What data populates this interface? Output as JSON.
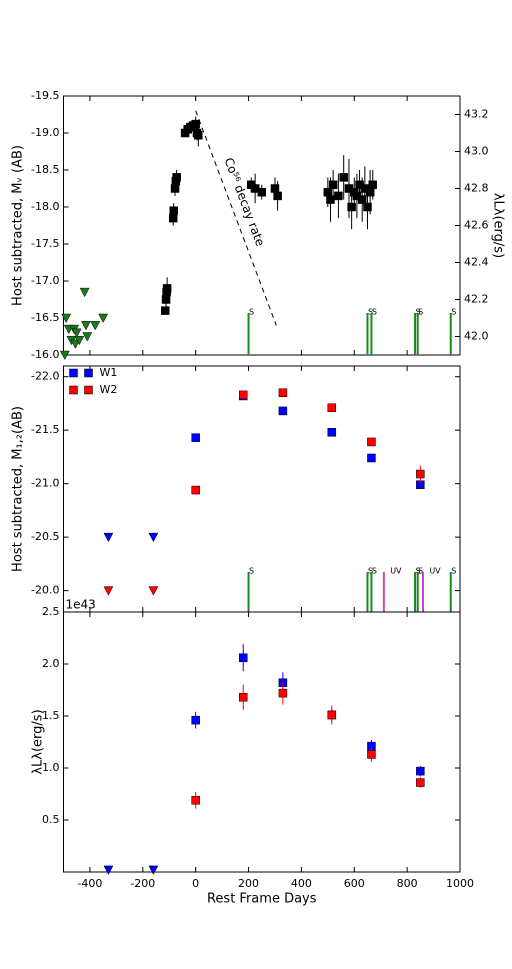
{
  "chart_data": [
    {
      "type": "scatter",
      "y_label": "Host subtracted, Mᵥ (AB)",
      "y2_label": "λLλ(erg/s)",
      "xlim": [
        -500,
        1000
      ],
      "ylim": [
        -16.0,
        -19.5
      ],
      "yticks": [
        {
          "value": -16.0,
          "label": "-16.0"
        },
        -16.5,
        {
          "value": -17.0,
          "label": "-17.0"
        },
        -17.5,
        {
          "value": -18.0,
          "label": "-18.0"
        },
        -18.5,
        {
          "value": -19.0,
          "label": "-19.0"
        },
        -19.5
      ],
      "y2lim": [
        41.9,
        43.3
      ],
      "y2ticks": [
        {
          "value": 42.0,
          "label": "42.0"
        },
        42.2,
        42.4,
        42.6,
        42.8,
        {
          "value": 43.0,
          "label": "43.0"
        },
        43.2
      ],
      "series": [
        {
          "marker": "square",
          "color": "#000000",
          "x": [
            -115,
            -112,
            -110,
            -108,
            -85,
            -83,
            -78,
            -75,
            -72,
            -40,
            -30,
            -20,
            -10,
            0,
            5,
            10,
            210,
            225,
            250,
            300,
            310,
            500,
            510,
            520,
            540,
            560,
            580,
            590,
            600,
            610,
            620,
            630,
            640,
            650,
            660,
            670
          ],
          "values": [
            -16.6,
            -16.75,
            -16.85,
            -16.9,
            -17.85,
            -17.95,
            -18.25,
            -18.35,
            -18.4,
            -19.0,
            -19.05,
            -19.08,
            -19.1,
            -19.12,
            -19.0,
            -18.97,
            -18.3,
            -18.25,
            -18.2,
            -18.25,
            -18.15,
            -18.2,
            -18.1,
            -18.3,
            -18.15,
            -18.4,
            -18.25,
            -18.0,
            -18.2,
            -18.15,
            -18.3,
            -18.1,
            -18.25,
            -18.0,
            -18.2,
            -18.3
          ],
          "errors": [
            0.05,
            0.1,
            0.1,
            0.15,
            0.1,
            0.1,
            0.1,
            0.1,
            0.1,
            0.05,
            0.05,
            0.05,
            0.05,
            0.1,
            0.1,
            0.15,
            0.1,
            0.2,
            0.1,
            0.15,
            0.2,
            0.2,
            0.3,
            0.2,
            0.3,
            0.3,
            0.4,
            0.3,
            0.2,
            0.3,
            0.2,
            0.3,
            0.3,
            0.3,
            0.3,
            0.2
          ]
        },
        {
          "marker": "triangle-down",
          "color": "#1a7a1a",
          "x": [
            -495,
            -490,
            -480,
            -470,
            -460,
            -455,
            -450,
            -440,
            -420,
            -415,
            -410,
            -380,
            -350
          ],
          "values": [
            -16.0,
            -16.5,
            -16.35,
            -16.2,
            -16.35,
            -16.15,
            -16.3,
            -16.2,
            -16.85,
            -16.4,
            -16.25,
            -16.4,
            -16.5
          ]
        }
      ],
      "spectra": {
        "color": "#1a8a1a",
        "x": [
          200,
          650,
          665,
          830,
          840,
          965
        ],
        "labels": [
          "S",
          "S",
          "S",
          "S",
          "S",
          "S"
        ]
      },
      "decay_line": {
        "label": "Co⁵⁶ decay rate",
        "x": [
          0,
          305
        ],
        "values": [
          -19.3,
          -16.4
        ]
      }
    },
    {
      "type": "scatter",
      "y_label": "Host subtracted, M₁,₂(AB)",
      "xlim": [
        -500,
        1000
      ],
      "ylim": [
        -19.8,
        -22.1
      ],
      "yticks": [
        {
          "value": -20.0,
          "label": "-20.0"
        },
        -20.5,
        {
          "value": -21.0,
          "label": "-21.0"
        },
        -21.5,
        {
          "value": -22.0,
          "label": "-22.0"
        }
      ],
      "legend": "upper left",
      "series": [
        {
          "name": "W1",
          "marker": "square",
          "color": "#0000ff",
          "x": [
            0,
            180,
            330,
            515,
            665,
            850
          ],
          "values": [
            -21.43,
            -21.82,
            -21.68,
            -21.48,
            -21.24,
            -20.99
          ],
          "errors": [
            0.02,
            0.02,
            0.02,
            0.02,
            0.02,
            0.02
          ]
        },
        {
          "name": "W2",
          "marker": "square",
          "color": "#ff0000",
          "x": [
            0,
            180,
            330,
            515,
            665,
            850
          ],
          "values": [
            -20.94,
            -21.83,
            -21.85,
            -21.71,
            -21.39,
            -21.09
          ],
          "errors": [
            0.02,
            0.03,
            0.03,
            0.03,
            0.03,
            0.08
          ]
        },
        {
          "marker": "triangle-down",
          "color": "#0000ff",
          "x": [
            -330,
            -160
          ],
          "values": [
            -20.5,
            -20.5
          ]
        },
        {
          "marker": "triangle-down",
          "color": "#ff0000",
          "x": [
            -330,
            -160
          ],
          "values": [
            -20.0,
            -20.0
          ]
        }
      ],
      "spectra": {
        "color": "#1a8a1a",
        "x": [
          200,
          650,
          665,
          830,
          840,
          965
        ],
        "labels": [
          "S",
          "S",
          "S",
          "S",
          "S",
          "S"
        ]
      },
      "uv": {
        "color": "#cc44cc",
        "x": [
          712,
          860
        ],
        "labels": [
          "UV",
          "UV"
        ]
      }
    },
    {
      "type": "scatter",
      "y_label": "λLλ(erg/s)",
      "x_label": "Rest Frame Days",
      "offset_label": "1e43",
      "xlim": [
        -500,
        1000
      ],
      "xticks": [
        -400,
        -200,
        0,
        200,
        400,
        600,
        800,
        1000
      ],
      "ylim": [
        0,
        2.5
      ],
      "yticks": [
        0.5,
        {
          "value": 1.0,
          "label": "1.0"
        },
        1.5,
        {
          "value": 2.0,
          "label": "2.0"
        },
        2.5
      ],
      "series": [
        {
          "marker": "square",
          "color": "#0000ff",
          "x": [
            0,
            180,
            330,
            515,
            665,
            850
          ],
          "values": [
            1.46,
            2.06,
            1.82,
            1.51,
            1.21,
            0.97
          ],
          "errors": [
            0.08,
            0.13,
            0.1,
            0.06,
            0.06,
            0.05
          ]
        },
        {
          "marker": "square",
          "color": "#ff0000",
          "x": [
            0,
            180,
            330,
            515,
            665,
            850
          ],
          "values": [
            0.69,
            1.68,
            1.72,
            1.51,
            1.13,
            0.86
          ],
          "errors": [
            0.08,
            0.12,
            0.11,
            0.09,
            0.07,
            0.05
          ]
        },
        {
          "marker": "triangle-down",
          "color": "#0000ff",
          "x": [
            -330,
            -160
          ],
          "values": [
            0.02,
            0.02
          ]
        }
      ]
    }
  ]
}
